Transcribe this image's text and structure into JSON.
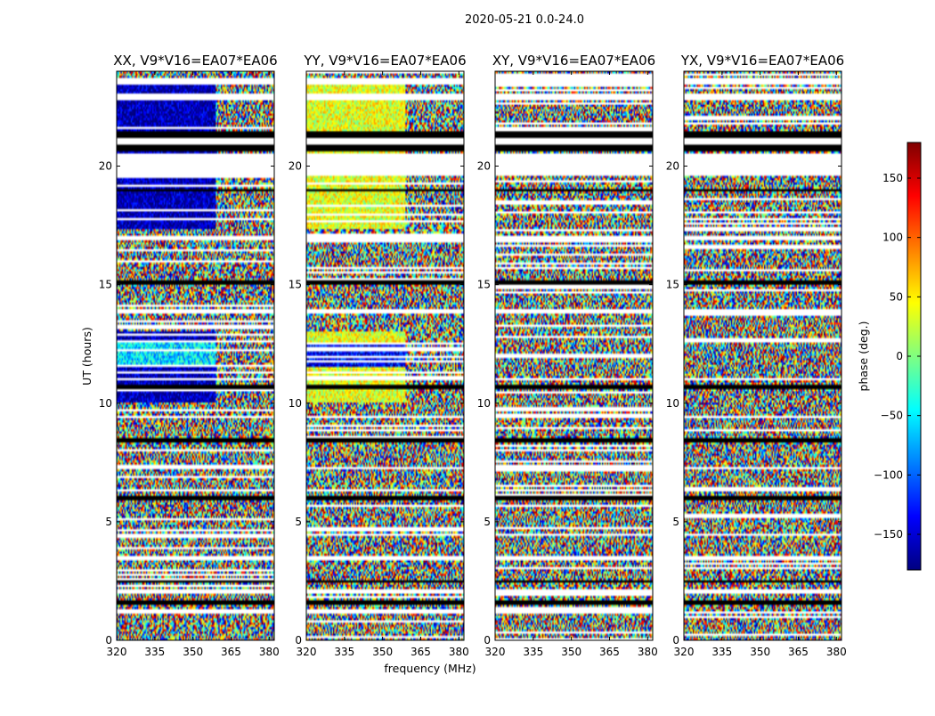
{
  "figure": {
    "suptitle": "2020-05-21 0.0-24.0"
  },
  "chart_data": {
    "type": "heatmap",
    "xlabel": "frequency (MHz)",
    "ylabel": "UT (hours)",
    "xlim": [
      320,
      382
    ],
    "ylim": [
      0,
      24
    ],
    "xticks": [
      320,
      335,
      350,
      365,
      380
    ],
    "yticks": [
      0,
      5,
      10,
      15,
      20
    ],
    "colorbar": {
      "label": "phase (deg.)",
      "range": [
        -180,
        180
      ],
      "ticks": [
        150,
        100,
        50,
        0,
        -50,
        -100,
        -150
      ],
      "tick_labels": [
        "150",
        "100",
        "50",
        "0",
        "−50",
        "−100",
        "−150"
      ],
      "colormap": "jet"
    },
    "panels": [
      {
        "title": "XX, V9*V16=EA07*EA06",
        "pattern": "XX"
      },
      {
        "title": "YY, V9*V16=EA07*EA06",
        "pattern": "YY"
      },
      {
        "title": "XY, V9*V16=EA07*EA06",
        "pattern": "XY"
      },
      {
        "title": "YX, V9*V16=EA07*EA06",
        "pattern": "YX"
      }
    ],
    "flagged_ut_ranges": [
      [
        20.65,
        20.95
      ],
      [
        21.15,
        21.45
      ],
      [
        18.95,
        19.05
      ],
      [
        10.6,
        10.75
      ],
      [
        8.3,
        8.55
      ],
      [
        5.9,
        6.05
      ],
      [
        2.4,
        2.5
      ],
      [
        1.5,
        1.65
      ],
      [
        15.0,
        15.2
      ]
    ],
    "blank_ut_ranges": [
      [
        20.95,
        21.15
      ],
      [
        19.6,
        20.5
      ],
      [
        23.4,
        23.7
      ],
      [
        22.8,
        23.05
      ],
      [
        16.9,
        17.1
      ],
      [
        13.8,
        14.0
      ],
      [
        11.0,
        11.1
      ],
      [
        9.35,
        9.45
      ],
      [
        7.2,
        7.3
      ],
      [
        6.3,
        6.4
      ],
      [
        4.4,
        4.5
      ],
      [
        3.4,
        3.55
      ],
      [
        2.0,
        2.15
      ],
      [
        1.1,
        1.2
      ]
    ]
  }
}
